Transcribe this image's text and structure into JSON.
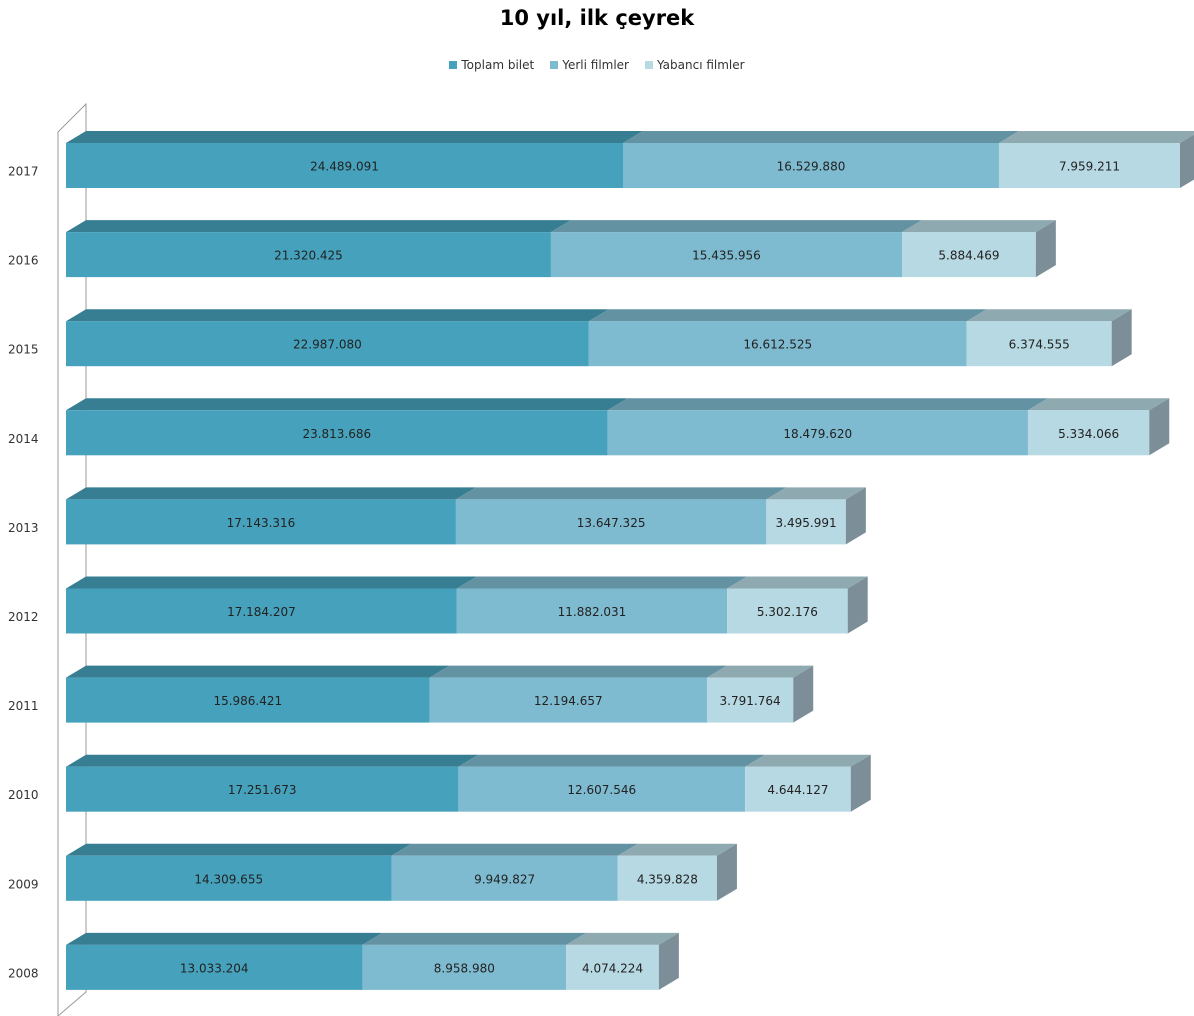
{
  "chart_data": {
    "type": "bar",
    "orientation": "horizontal",
    "stacked": true,
    "three_d": true,
    "title": "10 yıl, ilk çeyrek",
    "legend_position": "top",
    "grid": false,
    "categories": [
      "2017",
      "2016",
      "2015",
      "2014",
      "2013",
      "2012",
      "2011",
      "2010",
      "2009",
      "2008"
    ],
    "series": [
      {
        "name": "Toplam bilet",
        "color": "#46a2bc",
        "values": [
          24489091,
          21320425,
          22987080,
          23813686,
          17143316,
          17184207,
          15986421,
          17251673,
          14309655,
          13033204
        ],
        "labels": [
          "24.489.091",
          "21.320.425",
          "22.987.080",
          "23.813.686",
          "17.143.316",
          "17.184.207",
          "15.986.421",
          "17.251.673",
          "14.309.655",
          "13.033.204"
        ]
      },
      {
        "name": "Yerli filmler",
        "color": "#7fbbd0",
        "values": [
          16529880,
          15435956,
          16612525,
          18479620,
          13647325,
          11882031,
          12194657,
          12607546,
          9949827,
          8958980
        ],
        "labels": [
          "16.529.880",
          "15.435.956",
          "16.612.525",
          "18.479.620",
          "13.647.325",
          "11.882.031",
          "12.194.657",
          "12.607.546",
          "9.949.827",
          "8.958.980"
        ]
      },
      {
        "name": "Yabancı filmler",
        "color": "#b7d9e3",
        "values": [
          7959211,
          5884469,
          6374555,
          5334066,
          3495991,
          5302176,
          3791764,
          4644127,
          4359828,
          4074224
        ],
        "labels": [
          "7.959.211",
          "5.884.469",
          "6.374.555",
          "5.334.066",
          "3.495.991",
          "5.302.176",
          "3.791.764",
          "4.644.127",
          "4.359.828",
          "4.074.224"
        ]
      }
    ]
  }
}
